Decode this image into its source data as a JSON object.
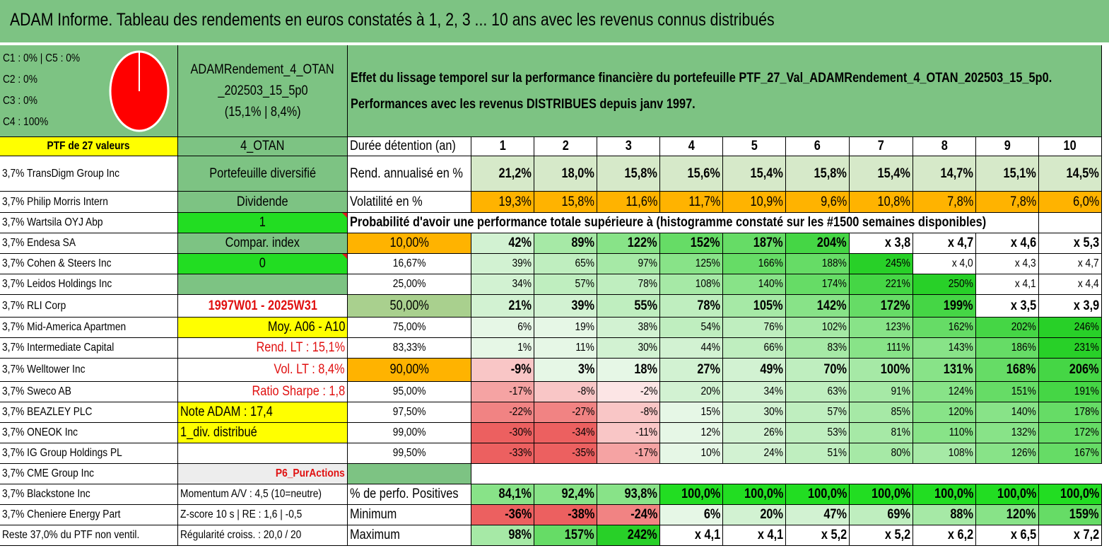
{
  "title": "ADAM Informe. Tableau des rendements en euros constatés à 1, 2, 3 ... 10 ans avec les revenus connus distribués",
  "legend": [
    "C1 : 0% | C5 : 0%",
    "C2 : 0%",
    "C3 : 0%",
    "C4 : 100%"
  ],
  "pie": {
    "color": "#ff0000",
    "slices": [
      {
        "label": "C4",
        "value": 100
      }
    ]
  },
  "name_block": [
    "ADAMRendement_4_OTAN",
    "_202503_15_5p0",
    "(15,1% | 8,4%)"
  ],
  "description": [
    "Effet du lissage temporel sur la performance financière du portefeuille PTF_27_Val_ADAMRendement_4_OTAN_202503_15_5p0.",
    "Performances avec les revenus DISTRIBUES depuis janv 1997."
  ],
  "holdings": [
    "PTF de 27 valeurs",
    "3,7% TransDigm Group Inc",
    "3,7% Philip Morris Intern",
    "3,7% Wartsila OYJ Abp",
    "3,7% Endesa SA",
    "3,7% Cohen & Steers Inc",
    "3,7% Leidos Holdings Inc",
    "3,7% RLI Corp",
    "3,7% Mid-America Apartmen",
    "3,7% Intermediate Capital",
    "3,7% Welltower Inc",
    "3,7% Sweco AB",
    "3,7% BEAZLEY PLC",
    "3,7% ONEOK Inc",
    "3,7% IG Group Holdings PL",
    "3,7% CME Group Inc",
    "3,7% Blackstone Inc",
    "3,7% Cheniere Energy Part",
    "Reste 37,0% du PTF non ventil."
  ],
  "info": [
    "4_OTAN",
    "Portefeuille diversifié",
    "Dividende",
    "1",
    "Compar. index",
    "0",
    "",
    "1997W01 - 2025W31",
    "Moy. A06 - A10",
    "Rend. LT : 15,1%",
    "Vol. LT : 8,4%",
    "Ratio Sharpe : 1,8",
    "Note ADAM : 17,4",
    "1_div. distribué",
    "",
    "P6_PurActions",
    "Momentum A/V : 4,5 (10=neutre)",
    "Z-score 10 s | RE : 1,6 | -0,5",
    "Régularité croiss. : 20,0 / 20"
  ],
  "table": {
    "duration_label": "Durée détention (an)",
    "years": [
      "1",
      "2",
      "3",
      "4",
      "5",
      "6",
      "7",
      "8",
      "9",
      "10"
    ],
    "return_label": "Rend. annualisé en %",
    "returns": [
      "21,2%",
      "18,0%",
      "15,8%",
      "15,6%",
      "15,4%",
      "15,8%",
      "15,4%",
      "14,7%",
      "15,1%",
      "14,5%"
    ],
    "volatility_label": "Volatilité en %",
    "volatility": [
      "19,3%",
      "15,8%",
      "11,6%",
      "11,7%",
      "10,9%",
      "9,6%",
      "10,8%",
      "7,8%",
      "7,8%",
      "6,0%"
    ],
    "probability_header": "Probabilité d'avoir une performance totale supérieure à (histogramme constaté sur les #1500 semaines disponibles)",
    "probability_rows": [
      {
        "p": "10,00%",
        "v": [
          "42%",
          "89%",
          "122%",
          "152%",
          "187%",
          "204%",
          "x 3,8",
          "x 4,7",
          "x 4,6",
          "x 5,3"
        ]
      },
      {
        "p": "16,67%",
        "v": [
          "39%",
          "65%",
          "97%",
          "125%",
          "166%",
          "188%",
          "245%",
          "x 4,0",
          "x 4,3",
          "x 4,7"
        ]
      },
      {
        "p": "25,00%",
        "v": [
          "34%",
          "57%",
          "78%",
          "108%",
          "140%",
          "174%",
          "221%",
          "250%",
          "x 4,1",
          "x 4,4"
        ]
      },
      {
        "p": "50,00%",
        "v": [
          "21%",
          "39%",
          "55%",
          "78%",
          "105%",
          "142%",
          "172%",
          "199%",
          "x 3,5",
          "x 3,9"
        ]
      },
      {
        "p": "75,00%",
        "v": [
          "6%",
          "19%",
          "38%",
          "54%",
          "76%",
          "102%",
          "123%",
          "162%",
          "202%",
          "246%"
        ]
      },
      {
        "p": "83,33%",
        "v": [
          "1%",
          "11%",
          "30%",
          "44%",
          "66%",
          "83%",
          "111%",
          "143%",
          "186%",
          "231%"
        ]
      },
      {
        "p": "90,00%",
        "v": [
          "-9%",
          "3%",
          "18%",
          "27%",
          "49%",
          "70%",
          "100%",
          "131%",
          "168%",
          "206%"
        ]
      },
      {
        "p": "95,00%",
        "v": [
          "-17%",
          "-8%",
          "-2%",
          "20%",
          "34%",
          "63%",
          "91%",
          "124%",
          "151%",
          "191%"
        ]
      },
      {
        "p": "97,50%",
        "v": [
          "-22%",
          "-27%",
          "-8%",
          "15%",
          "30%",
          "57%",
          "85%",
          "120%",
          "140%",
          "178%"
        ]
      },
      {
        "p": "99,00%",
        "v": [
          "-30%",
          "-34%",
          "-11%",
          "12%",
          "26%",
          "53%",
          "81%",
          "110%",
          "132%",
          "172%"
        ]
      },
      {
        "p": "99,50%",
        "v": [
          "-33%",
          "-35%",
          "-17%",
          "10%",
          "24%",
          "51%",
          "80%",
          "108%",
          "126%",
          "167%"
        ]
      }
    ],
    "positive_label": "% de perfo. Positives",
    "positive": [
      "84,1%",
      "92,4%",
      "93,8%",
      "100,0%",
      "100,0%",
      "100,0%",
      "100,0%",
      "100,0%",
      "100,0%",
      "100,0%"
    ],
    "minimum_label": "Minimum",
    "minimum": [
      "-36%",
      "-38%",
      "-24%",
      "6%",
      "20%",
      "47%",
      "69%",
      "88%",
      "120%",
      "159%"
    ],
    "maximum_label": "Maximum",
    "maximum": [
      "98%",
      "157%",
      "242%",
      "x 4,1",
      "x 4,1",
      "x 5,2",
      "x 5,2",
      "x 6,2",
      "x 6,5",
      "x 7,2"
    ]
  },
  "colors": {
    "title_green": "#7dc383",
    "yellow": "#ffff00",
    "bright_green": "#22dd22",
    "orange": "#ffb300",
    "red_text": "#e01010"
  }
}
